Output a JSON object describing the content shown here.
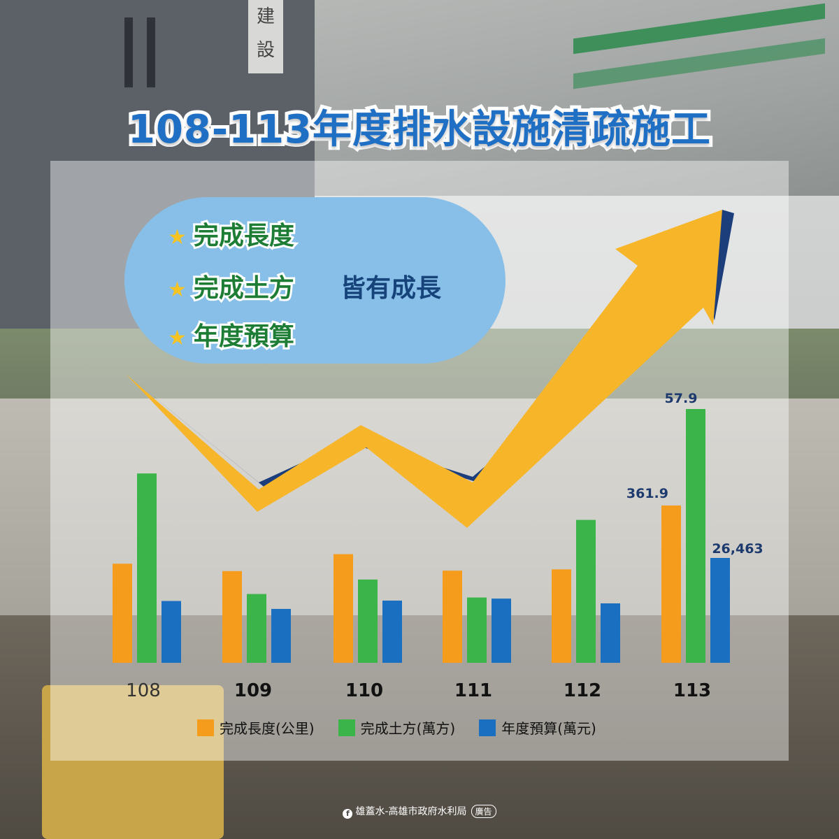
{
  "title": "108-113年度排水設施清疏施工",
  "background": {
    "sign_chars": [
      "建",
      "設"
    ]
  },
  "callout": {
    "items": [
      "完成長度",
      "完成土方",
      "年度預算"
    ],
    "growth_text": "皆有成長",
    "star_icon": "star-icon"
  },
  "chart_data": {
    "type": "bar",
    "categories": [
      "108",
      "109",
      "110",
      "111",
      "112",
      "113"
    ],
    "series": [
      {
        "name": "完成長度(公里)",
        "color": "#f59c1c",
        "values": [
          228,
          211,
          250,
          212,
          215,
          361.9
        ]
      },
      {
        "name": "完成土方(萬方)",
        "color": "#3bb54a",
        "values": [
          43.2,
          15.7,
          19.0,
          14.9,
          32.6,
          57.9
        ]
      },
      {
        "name": "年度預算(萬元)",
        "color": "#1b6fc0",
        "values": [
          15600,
          13600,
          15700,
          16200,
          15000,
          26463
        ]
      }
    ],
    "data_labels": {
      "113": [
        "361.9",
        "57.9",
        "26,463"
      ]
    },
    "legend_position": "bottom",
    "grid": false,
    "trend_arrow": true
  },
  "footer": {
    "page_name": "雄蓋水-高雄市政府水利局",
    "ad_label": "廣告",
    "fb_icon": "facebook-icon"
  }
}
